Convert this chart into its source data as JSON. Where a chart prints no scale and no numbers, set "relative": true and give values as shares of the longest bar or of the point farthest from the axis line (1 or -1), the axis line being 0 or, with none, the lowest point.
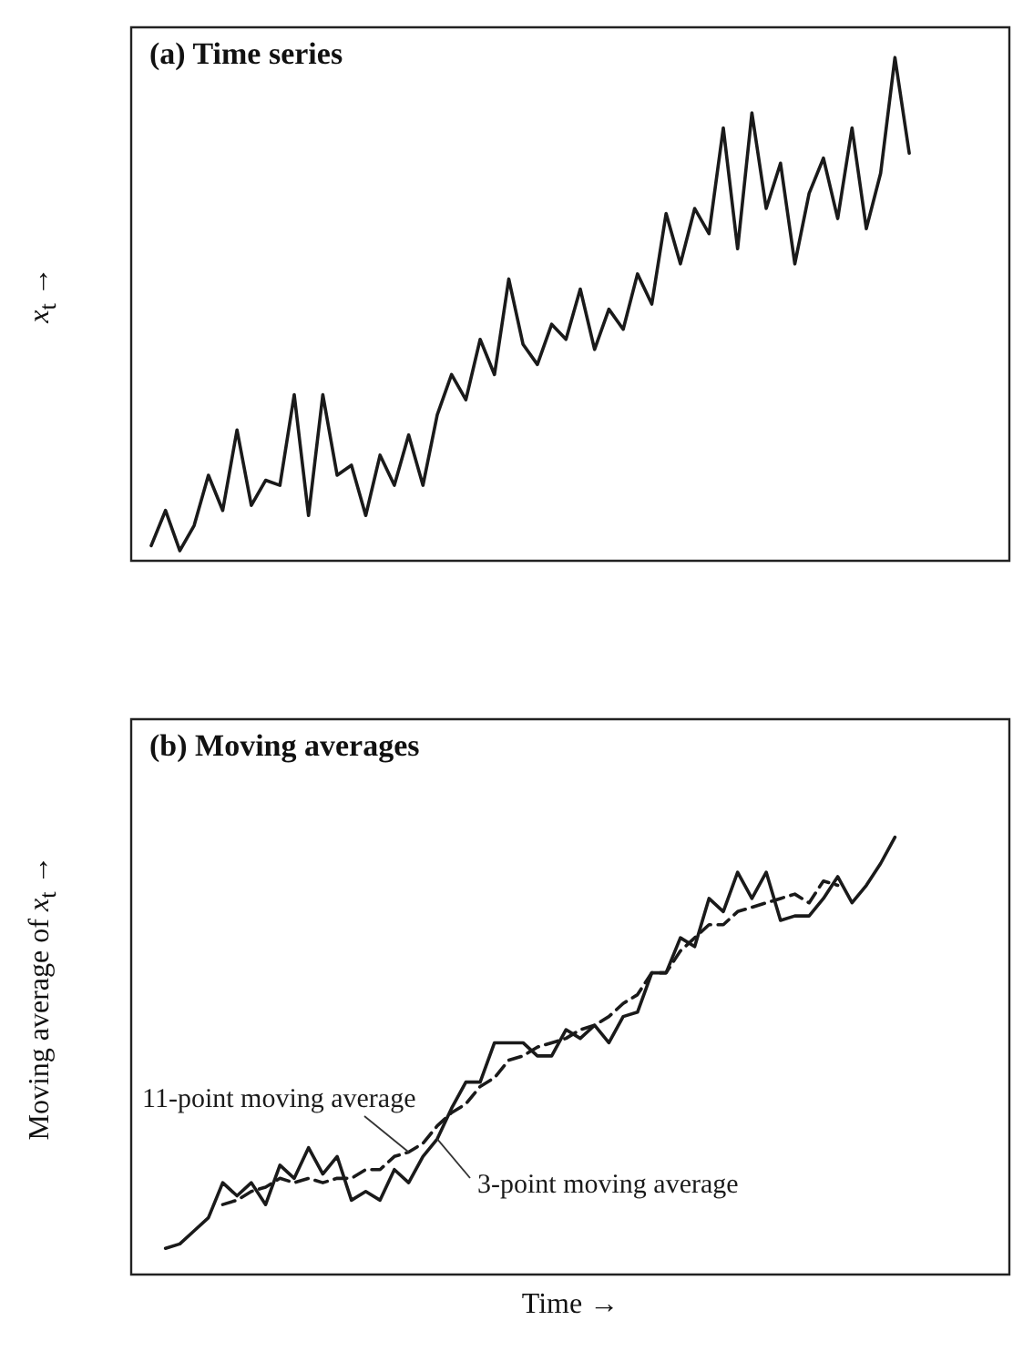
{
  "chart_data": [
    {
      "type": "line",
      "title": "(a) Time series",
      "ylabel": "x$_{t}$ →",
      "relative": true,
      "categories": [
        null,
        null,
        null,
        null,
        null,
        null,
        null,
        null,
        null,
        null,
        null,
        null,
        null,
        null,
        null,
        null,
        null,
        null,
        null,
        null,
        null,
        null,
        null,
        null,
        null,
        null,
        null,
        null,
        null,
        null,
        null,
        null,
        null,
        null,
        null,
        null,
        null,
        null,
        null,
        null,
        null,
        null,
        null,
        null,
        null,
        null,
        null,
        null,
        null,
        null,
        null,
        null,
        null,
        null
      ],
      "series": [
        {
          "color": "#1a1a1a",
          "values": [
            0.03,
            0.1,
            0.02,
            0.07,
            0.17,
            0.1,
            0.26,
            0.11,
            0.16,
            0.15,
            0.33,
            0.09,
            0.33,
            0.17,
            0.19,
            0.09,
            0.21,
            0.15,
            0.25,
            0.15,
            0.29,
            0.37,
            0.32,
            0.44,
            0.37,
            0.56,
            0.43,
            0.39,
            0.47,
            0.44,
            0.54,
            0.42,
            0.5,
            0.46,
            0.57,
            0.51,
            0.69,
            0.59,
            0.7,
            0.65,
            0.86,
            0.62,
            0.89,
            0.7,
            0.79,
            0.59,
            0.73,
            0.8,
            0.68,
            0.86,
            0.66,
            0.77,
            1,
            0.81
          ]
        }
      ]
    },
    {
      "type": "line",
      "title": "(b) Moving averages",
      "xlabel": "Time →",
      "ylabel": "Moving average of x$_{t}$ →",
      "relative": true,
      "categories": [
        null,
        null,
        null,
        null,
        null,
        null,
        null,
        null,
        null,
        null,
        null,
        null,
        null,
        null,
        null,
        null,
        null,
        null,
        null,
        null,
        null,
        null,
        null,
        null,
        null,
        null,
        null,
        null,
        null,
        null,
        null,
        null,
        null,
        null,
        null,
        null,
        null,
        null,
        null,
        null,
        null,
        null,
        null,
        null,
        null,
        null,
        null,
        null,
        null,
        null,
        null,
        null,
        null,
        null
      ],
      "series": [
        {
          "name": "3-point moving average",
          "color": "#1a1a1a",
          "line_style": "solid",
          "values": [
            null,
            0.06,
            0.07,
            0.1,
            0.13,
            0.21,
            0.18,
            0.21,
            0.16,
            0.25,
            0.22,
            0.29,
            0.23,
            0.27,
            0.17,
            0.19,
            0.17,
            0.24,
            0.21,
            0.27,
            0.31,
            0.38,
            0.44,
            0.44,
            0.53,
            0.53,
            0.53,
            0.5,
            0.5,
            0.56,
            0.54,
            0.57,
            0.53,
            0.59,
            0.6,
            0.69,
            0.69,
            0.77,
            0.75,
            0.86,
            0.83,
            0.92,
            0.86,
            0.92,
            0.81,
            0.82,
            0.82,
            0.86,
            0.91,
            0.85,
            0.89,
            0.94,
            1,
            null
          ]
        },
        {
          "name": "11-point moving average",
          "color": "#1a1a1a",
          "line_style": "dashed",
          "values": [
            null,
            null,
            null,
            null,
            null,
            0.16,
            0.17,
            0.19,
            0.2,
            0.22,
            0.21,
            0.22,
            0.21,
            0.22,
            0.22,
            0.24,
            0.24,
            0.27,
            0.28,
            0.3,
            0.34,
            0.37,
            0.39,
            0.43,
            0.45,
            0.49,
            0.5,
            0.52,
            0.53,
            0.54,
            0.56,
            0.57,
            0.59,
            0.62,
            0.64,
            0.69,
            0.69,
            0.74,
            0.77,
            0.8,
            0.8,
            0.83,
            0.84,
            0.85,
            0.86,
            0.87,
            0.85,
            0.9,
            0.89,
            null,
            null,
            null,
            null,
            null
          ]
        }
      ]
    }
  ]
}
